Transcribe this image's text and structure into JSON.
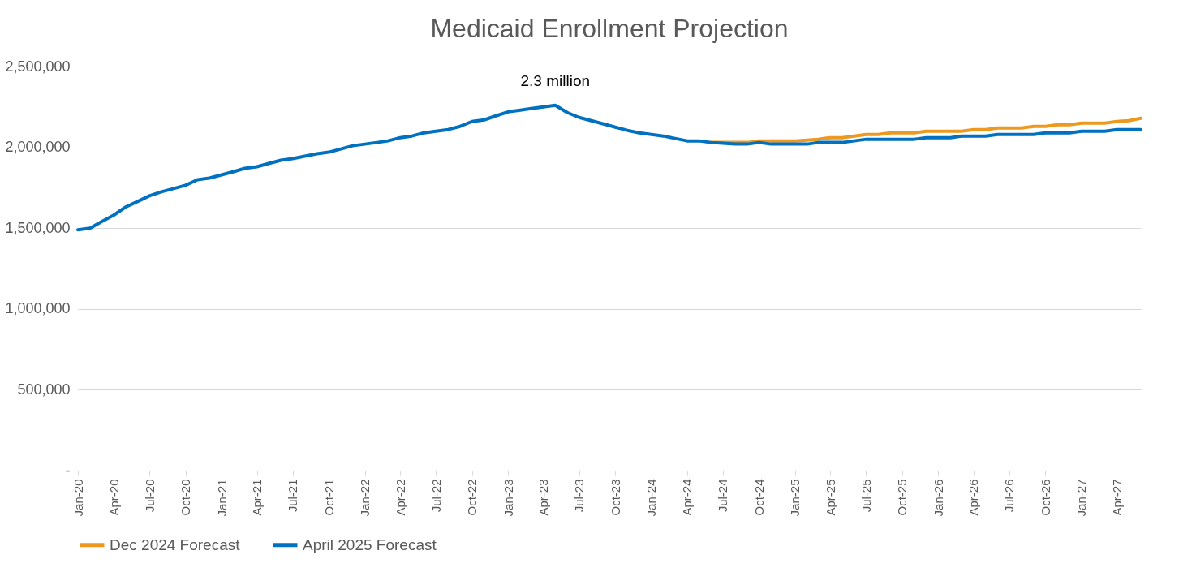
{
  "chart_data": {
    "type": "line",
    "title": "Medicaid Enrollment Projection",
    "x": [
      "2020-01",
      "2020-02",
      "2020-03",
      "2020-04",
      "2020-05",
      "2020-06",
      "2020-07",
      "2020-08",
      "2020-09",
      "2020-10",
      "2020-11",
      "2020-12",
      "2021-01",
      "2021-02",
      "2021-03",
      "2021-04",
      "2021-05",
      "2021-06",
      "2021-07",
      "2021-08",
      "2021-09",
      "2021-10",
      "2021-11",
      "2021-12",
      "2022-01",
      "2022-02",
      "2022-03",
      "2022-04",
      "2022-05",
      "2022-06",
      "2022-07",
      "2022-08",
      "2022-09",
      "2022-10",
      "2022-11",
      "2022-12",
      "2023-01",
      "2023-02",
      "2023-03",
      "2023-04",
      "2023-05",
      "2023-06",
      "2023-07",
      "2023-08",
      "2023-09",
      "2023-10",
      "2023-11",
      "2023-12",
      "2024-01",
      "2024-02",
      "2024-03",
      "2024-04",
      "2024-05",
      "2024-06",
      "2024-07",
      "2024-08",
      "2024-09",
      "2024-10",
      "2024-11",
      "2024-12",
      "2025-01",
      "2025-02",
      "2025-03",
      "2025-04",
      "2025-05",
      "2025-06",
      "2025-07",
      "2025-08",
      "2025-09",
      "2025-10",
      "2025-11",
      "2025-12",
      "2026-01",
      "2026-02",
      "2026-03",
      "2026-04",
      "2026-05",
      "2026-06",
      "2026-07",
      "2026-08",
      "2026-09",
      "2026-10",
      "2026-11",
      "2026-12",
      "2027-01",
      "2027-02",
      "2027-03",
      "2027-04",
      "2027-05",
      "2027-06"
    ],
    "series": [
      {
        "name": "Dec 2024 Forecast",
        "color": "#ed981e",
        "values": [
          null,
          null,
          null,
          null,
          null,
          null,
          null,
          null,
          null,
          null,
          null,
          null,
          null,
          null,
          null,
          null,
          null,
          null,
          null,
          null,
          null,
          null,
          null,
          null,
          null,
          null,
          null,
          null,
          null,
          null,
          null,
          null,
          null,
          null,
          null,
          null,
          null,
          null,
          null,
          null,
          null,
          null,
          null,
          null,
          null,
          null,
          null,
          null,
          null,
          null,
          null,
          null,
          null,
          2030000,
          2030000,
          2030000,
          2030000,
          2040000,
          2040000,
          2040000,
          2040000,
          2045000,
          2050000,
          2060000,
          2060000,
          2070000,
          2080000,
          2080000,
          2090000,
          2090000,
          2090000,
          2100000,
          2100000,
          2100000,
          2100000,
          2110000,
          2110000,
          2120000,
          2120000,
          2120000,
          2130000,
          2130000,
          2140000,
          2140000,
          2150000,
          2150000,
          2150000,
          2160000,
          2165000,
          2180000
        ]
      },
      {
        "name": "April 2025 Forecast",
        "color": "#0070c0",
        "values": [
          1490000,
          1500000,
          1540000,
          1580000,
          1630000,
          1665000,
          1700000,
          1725000,
          1745000,
          1765000,
          1800000,
          1810000,
          1830000,
          1850000,
          1870000,
          1880000,
          1900000,
          1920000,
          1930000,
          1945000,
          1960000,
          1970000,
          1990000,
          2010000,
          2020000,
          2030000,
          2040000,
          2060000,
          2070000,
          2090000,
          2100000,
          2110000,
          2130000,
          2160000,
          2170000,
          2195000,
          2220000,
          2230000,
          2240000,
          2250000,
          2260000,
          2215000,
          2185000,
          2165000,
          2145000,
          2125000,
          2105000,
          2090000,
          2080000,
          2070000,
          2055000,
          2040000,
          2040000,
          2030000,
          2025000,
          2020000,
          2020000,
          2030000,
          2020000,
          2020000,
          2020000,
          2020000,
          2030000,
          2030000,
          2030000,
          2040000,
          2050000,
          2050000,
          2050000,
          2050000,
          2050000,
          2060000,
          2060000,
          2060000,
          2070000,
          2070000,
          2070000,
          2080000,
          2080000,
          2080000,
          2080000,
          2090000,
          2090000,
          2090000,
          2100000,
          2100000,
          2100000,
          2110000,
          2110000,
          2110000
        ]
      }
    ],
    "xlim": [
      "2020-01",
      "2027-06"
    ],
    "xticks": [
      {
        "value": "2020-01",
        "label": "Jan-20"
      },
      {
        "value": "2020-04",
        "label": "Apr-20"
      },
      {
        "value": "2020-07",
        "label": "Jul-20"
      },
      {
        "value": "2020-10",
        "label": "Oct-20"
      },
      {
        "value": "2021-01",
        "label": "Jan-21"
      },
      {
        "value": "2021-04",
        "label": "Apr-21"
      },
      {
        "value": "2021-07",
        "label": "Jul-21"
      },
      {
        "value": "2021-10",
        "label": "Oct-21"
      },
      {
        "value": "2022-01",
        "label": "Jan-22"
      },
      {
        "value": "2022-04",
        "label": "Apr-22"
      },
      {
        "value": "2022-07",
        "label": "Jul-22"
      },
      {
        "value": "2022-10",
        "label": "Oct-22"
      },
      {
        "value": "2023-01",
        "label": "Jan-23"
      },
      {
        "value": "2023-04",
        "label": "Apr-23"
      },
      {
        "value": "2023-07",
        "label": "Jul-23"
      },
      {
        "value": "2023-10",
        "label": "Oct-23"
      },
      {
        "value": "2024-01",
        "label": "Jan-24"
      },
      {
        "value": "2024-04",
        "label": "Apr-24"
      },
      {
        "value": "2024-07",
        "label": "Jul-24"
      },
      {
        "value": "2024-10",
        "label": "Oct-24"
      },
      {
        "value": "2025-01",
        "label": "Jan-25"
      },
      {
        "value": "2025-04",
        "label": "Apr-25"
      },
      {
        "value": "2025-07",
        "label": "Jul-25"
      },
      {
        "value": "2025-10",
        "label": "Oct-25"
      },
      {
        "value": "2026-01",
        "label": "Jan-26"
      },
      {
        "value": "2026-04",
        "label": "Apr-26"
      },
      {
        "value": "2026-07",
        "label": "Jul-26"
      },
      {
        "value": "2026-10",
        "label": "Oct-26"
      },
      {
        "value": "2027-01",
        "label": "Jan-27"
      },
      {
        "value": "2027-04",
        "label": "Apr-27"
      }
    ],
    "ylim": [
      0,
      2500000
    ],
    "yticks": [
      {
        "value": 0,
        "label": "-"
      },
      {
        "value": 500000,
        "label": "500,000"
      },
      {
        "value": 1000000,
        "label": "1,000,000"
      },
      {
        "value": 1500000,
        "label": "1,500,000"
      },
      {
        "value": 2000000,
        "label": "2,000,000"
      },
      {
        "value": 2500000,
        "label": "2,500,000"
      }
    ],
    "annotations": [
      {
        "text": "2.3 million",
        "x": "2023-05",
        "y": 2260000
      }
    ],
    "grid": "y",
    "legend": "bottom",
    "marker": "none",
    "line_style": "solid"
  }
}
